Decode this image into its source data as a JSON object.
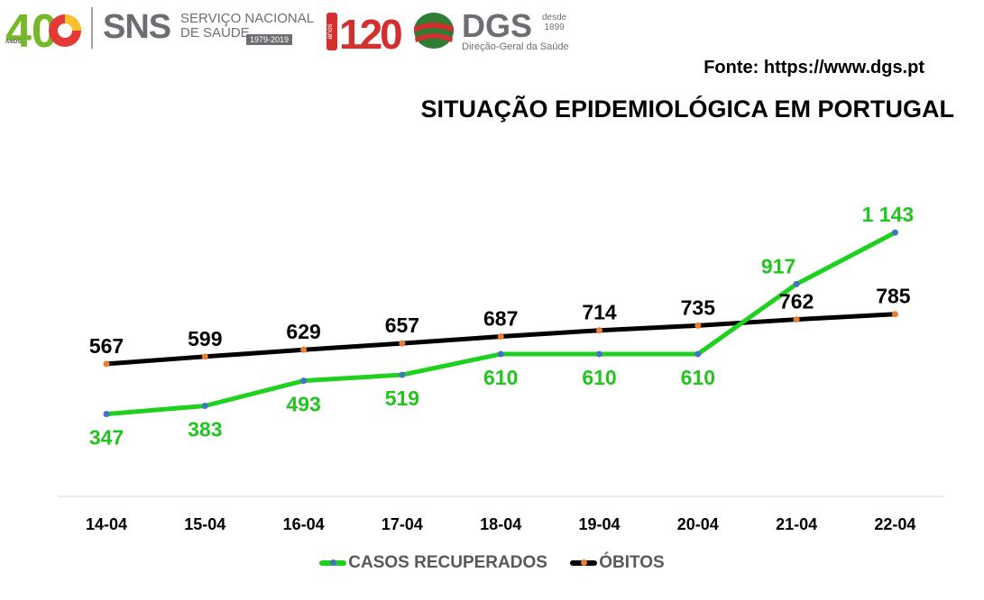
{
  "header": {
    "sns_anniversary": "40",
    "sns_anos": "ANOS",
    "sns_brand": "SNS",
    "sns_name_line1": "SERVIÇO NACIONAL",
    "sns_name_line2": "DE SAÚDE",
    "sns_years": "1979-2019",
    "dgs_anniversary": "120",
    "dgs_anos": "anos",
    "dgs_brand": "DGS",
    "dgs_desde": "desde",
    "dgs_year": "1899",
    "dgs_name": "Direção-Geral da Saúde"
  },
  "source": "Fonte: https://www.dgs.pt",
  "chart_data": {
    "type": "line",
    "title": "SITUAÇÃO EPIDEMIOLÓGICA EM PORTUGAL",
    "categories": [
      "14-04",
      "15-04",
      "16-04",
      "17-04",
      "18-04",
      "19-04",
      "20-04",
      "21-04",
      "22-04"
    ],
    "series": [
      {
        "name": "CASOS RECUPERADOS",
        "values": [
          347,
          383,
          493,
          519,
          610,
          610,
          610,
          917,
          1143
        ],
        "labels": [
          "347",
          "383",
          "493",
          "519",
          "610",
          "610",
          "610",
          "917",
          "1 143"
        ],
        "line_color": "#1fd11f",
        "marker_color": "#4472c4",
        "label_color": "#22c41f"
      },
      {
        "name": "ÓBITOS",
        "values": [
          567,
          599,
          629,
          657,
          687,
          714,
          735,
          762,
          785
        ],
        "labels": [
          "567",
          "599",
          "629",
          "657",
          "687",
          "714",
          "735",
          "762",
          "785"
        ],
        "line_color": "#000000",
        "marker_color": "#ed7d31",
        "label_color": "#000000"
      }
    ],
    "legend_position": "bottom",
    "grid": false
  }
}
